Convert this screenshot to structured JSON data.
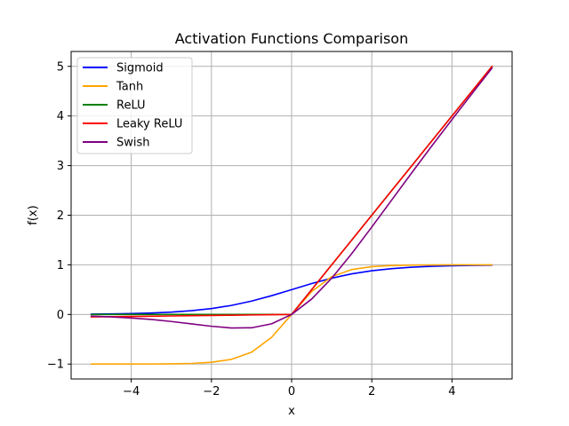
{
  "chart_data": {
    "type": "line",
    "title": "Activation Functions Comparison",
    "xlabel": "x",
    "ylabel": "f(x)",
    "xlim": [
      -5.5,
      5.5
    ],
    "ylim": [
      -1.3,
      5.3
    ],
    "x_ticks": [
      -4,
      -2,
      0,
      2,
      4
    ],
    "x_tick_labels": [
      "−4",
      "−2",
      "0",
      "2",
      "4"
    ],
    "y_ticks": [
      -1,
      0,
      1,
      2,
      3,
      4,
      5
    ],
    "y_tick_labels": [
      "−1",
      "0",
      "1",
      "2",
      "3",
      "4",
      "5"
    ],
    "grid": true,
    "legend_position": "upper-left",
    "x": [
      -5,
      -4.5,
      -4,
      -3.5,
      -3,
      -2.5,
      -2,
      -1.5,
      -1,
      -0.5,
      0,
      0.5,
      1,
      1.5,
      2,
      2.5,
      3,
      3.5,
      4,
      4.5,
      5
    ],
    "series": [
      {
        "name": "Sigmoid",
        "color": "#0000ff",
        "values": [
          0.007,
          0.011,
          0.018,
          0.029,
          0.047,
          0.076,
          0.119,
          0.182,
          0.269,
          0.378,
          0.5,
          0.622,
          0.731,
          0.818,
          0.881,
          0.924,
          0.953,
          0.971,
          0.982,
          0.989,
          0.993
        ]
      },
      {
        "name": "Tanh",
        "color": "#ffa500",
        "values": [
          -1.0,
          -1.0,
          -0.999,
          -0.998,
          -0.995,
          -0.987,
          -0.964,
          -0.905,
          -0.762,
          -0.462,
          0.0,
          0.462,
          0.762,
          0.905,
          0.964,
          0.987,
          0.995,
          0.998,
          0.999,
          1.0,
          1.0
        ]
      },
      {
        "name": "ReLU",
        "color": "#008000",
        "values": [
          0,
          0,
          0,
          0,
          0,
          0,
          0,
          0,
          0,
          0,
          0,
          0.5,
          1,
          1.5,
          2,
          2.5,
          3,
          3.5,
          4,
          4.5,
          5
        ]
      },
      {
        "name": "Leaky ReLU",
        "color": "#ff0000",
        "values": [
          -0.05,
          -0.045,
          -0.04,
          -0.035,
          -0.03,
          -0.025,
          -0.02,
          -0.015,
          -0.01,
          -0.005,
          0,
          0.5,
          1,
          1.5,
          2,
          2.5,
          3,
          3.5,
          4,
          4.5,
          5
        ]
      },
      {
        "name": "Swish",
        "color": "#800080",
        "values": [
          -0.033,
          -0.05,
          -0.072,
          -0.101,
          -0.142,
          -0.19,
          -0.238,
          -0.273,
          -0.269,
          -0.189,
          0.0,
          0.311,
          0.731,
          1.227,
          1.762,
          2.31,
          2.858,
          3.399,
          3.928,
          4.45,
          4.967
        ]
      }
    ]
  }
}
